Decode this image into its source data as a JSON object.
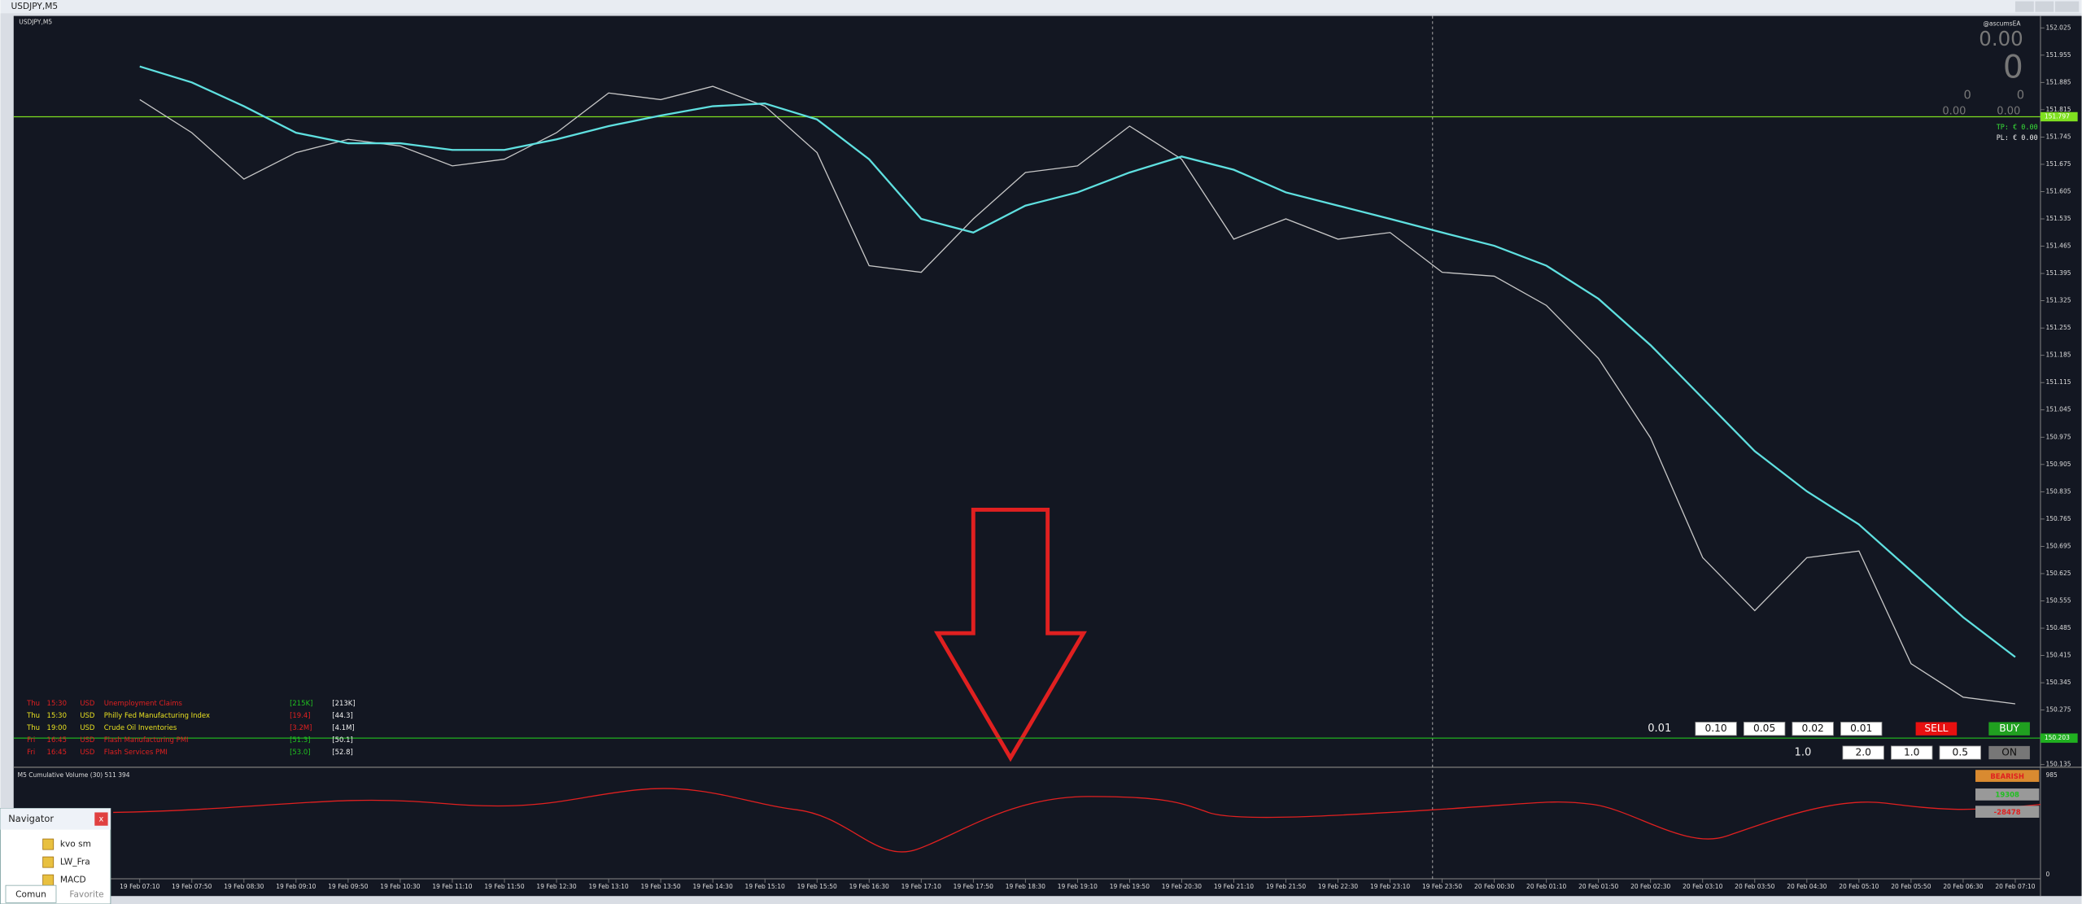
{
  "window": {
    "title": "USDJPY,M5"
  },
  "chart_data": {
    "type": "line",
    "title": "USDJPY,M5",
    "x": [
      "19 Feb 07:10",
      "19 Feb 07:50",
      "19 Feb 08:30",
      "19 Feb 09:10",
      "19 Feb 09:50",
      "19 Feb 10:30",
      "19 Feb 11:10",
      "19 Feb 11:50",
      "19 Feb 12:30",
      "19 Feb 13:10",
      "19 Feb 13:50",
      "19 Feb 14:30",
      "19 Feb 15:10",
      "19 Feb 15:50",
      "19 Feb 16:30",
      "19 Feb 17:10",
      "19 Feb 17:50",
      "19 Feb 18:30",
      "19 Feb 19:10",
      "19 Feb 19:50",
      "19 Feb 20:30",
      "19 Feb 21:10",
      "19 Feb 21:50",
      "19 Feb 22:30",
      "19 Feb 23:10",
      "19 Feb 23:50",
      "20 Feb 00:30",
      "20 Feb 01:10",
      "20 Feb 01:50",
      "20 Feb 02:30",
      "20 Feb 03:10",
      "20 Feb 03:50",
      "20 Feb 04:30",
      "20 Feb 05:10",
      "20 Feb 05:50",
      "20 Feb 06:30",
      "20 Feb 07:10"
    ],
    "series": [
      {
        "name": "Close",
        "color": "#c8c8c8",
        "values": [
          151.841,
          151.756,
          151.637,
          151.705,
          151.739,
          151.722,
          151.671,
          151.688,
          151.756,
          151.858,
          151.841,
          151.875,
          151.824,
          151.705,
          151.415,
          151.398,
          151.535,
          151.654,
          151.671,
          151.773,
          151.688,
          151.483,
          151.535,
          151.483,
          151.5,
          151.398,
          151.388,
          151.313,
          151.177,
          150.973,
          150.666,
          150.53,
          150.666,
          150.683,
          150.394,
          150.308,
          150.291
        ]
      },
      {
        "name": "MA",
        "color": "#5fe0e0",
        "values": [
          151.926,
          151.885,
          151.824,
          151.756,
          151.729,
          151.729,
          151.712,
          151.712,
          151.739,
          151.773,
          151.8,
          151.824,
          151.831,
          151.79,
          151.688,
          151.535,
          151.5,
          151.569,
          151.603,
          151.654,
          151.695,
          151.661,
          151.603,
          151.569,
          151.535,
          151.5,
          151.466,
          151.415,
          151.33,
          151.211,
          151.075,
          150.939,
          150.836,
          150.751,
          150.632,
          150.513,
          150.411
        ]
      }
    ],
    "levels": [
      {
        "value": 151.797,
        "color": "#7fe020"
      },
      {
        "value": 150.203,
        "color": "#20b020"
      }
    ],
    "ylim": [
      150.135,
      152.025
    ],
    "yticks": [
      152.025,
      151.955,
      151.885,
      151.815,
      151.745,
      151.675,
      151.605,
      151.535,
      151.465,
      151.395,
      151.325,
      151.255,
      151.185,
      151.115,
      151.045,
      150.975,
      150.905,
      150.835,
      150.765,
      150.695,
      150.625,
      150.555,
      150.485,
      150.415,
      150.345,
      150.275,
      150.205,
      150.135
    ]
  },
  "ea_panel": {
    "name": "@ascumsEA",
    "big1": "0.00",
    "big2": "0",
    "small": [
      "0",
      "0"
    ],
    "small2": [
      "0.00",
      "0.00"
    ],
    "tp": "TP: € 0.00",
    "pl": "PL: € 0.00"
  },
  "news": [
    {
      "day": "Thu",
      "time": "15:30",
      "cur": "USD",
      "event": "Unemployment Claims",
      "forecast": "[215K]",
      "actual": "[213K]",
      "color": "#e02020"
    },
    {
      "day": "Thu",
      "time": "15:30",
      "cur": "USD",
      "event": "Philly Fed Manufacturing Index",
      "forecast": "[19.4]",
      "actual": "[44.3]",
      "color": "#e8e020"
    },
    {
      "day": "Thu",
      "time": "19:00",
      "cur": "USD",
      "event": "Crude Oil Inventories",
      "forecast": "[3.2M]",
      "actual": "[4.1M]",
      "color": "#e8e020"
    },
    {
      "day": "Fri",
      "time": "16:45",
      "cur": "USD",
      "event": "Flash Manufacturing PMI",
      "forecast": "[51.3]",
      "actual": "[50.1]",
      "color": "#e02020"
    },
    {
      "day": "Fri",
      "time": "16:45",
      "cur": "USD",
      "event": "Flash Services PMI",
      "forecast": "[53.0]",
      "actual": "[52.8]",
      "color": "#e02020"
    }
  ],
  "trade_panel": {
    "lots_label": "0.01",
    "lots": [
      "0.10",
      "0.05",
      "0.02",
      "0.01"
    ],
    "sell": "SELL",
    "buy": "BUY",
    "mult_label": "1.0",
    "mults": [
      "2.0",
      "1.0",
      "0.5"
    ],
    "on": "ON"
  },
  "indicator": {
    "title": "M5 Cumulative Volume (30) 511 394",
    "top": "985",
    "bottom": "0",
    "state": "BEARISH",
    "value1": "19308",
    "value2": "-28478"
  },
  "navigator": {
    "title": "Navigator",
    "close": "x",
    "items": [
      "kvo sm",
      "LW_Fra",
      "MACD"
    ],
    "tabs": [
      "Comun",
      "Favorite"
    ]
  }
}
